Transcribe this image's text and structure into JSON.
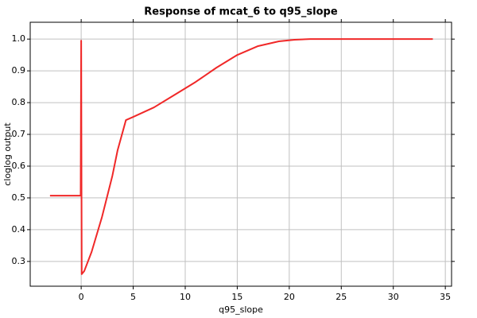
{
  "chart_data": {
    "type": "line",
    "title": "Response of mcat_6 to q95_slope",
    "x_label": "q95_slope",
    "y_label": "cloglog output",
    "x": [
      -3,
      -0.05,
      0,
      0.05,
      0.3,
      1,
      2,
      3,
      3.5,
      4.3,
      5,
      7,
      9,
      11,
      13,
      15,
      17,
      19,
      20.5,
      22,
      33.8
    ],
    "values": [
      0.507,
      0.507,
      0.995,
      0.26,
      0.27,
      0.33,
      0.44,
      0.57,
      0.65,
      0.745,
      0.755,
      0.785,
      0.825,
      0.865,
      0.91,
      0.95,
      0.978,
      0.993,
      0.998,
      1.0,
      1.0
    ],
    "color": "#f02828",
    "xlim": [
      -4.9,
      35.6
    ],
    "xticks": [
      0,
      5,
      10,
      15,
      20,
      25,
      30,
      35
    ],
    "ylim": [
      0.222,
      1.053
    ],
    "yticks": [
      0.3,
      0.4,
      0.5,
      0.6,
      0.7,
      0.8,
      0.9,
      {
        "value": 1,
        "label": "1.0"
      }
    ],
    "grid": true
  }
}
